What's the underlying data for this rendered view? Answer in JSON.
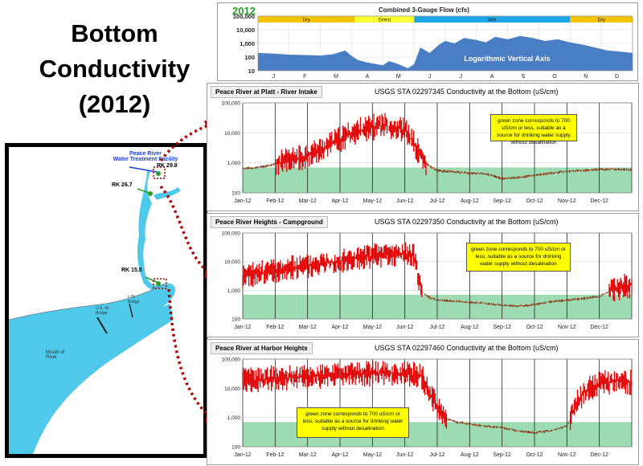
{
  "title": {
    "line1": "Bottom",
    "line2": "Conductivity",
    "line3": "(2012)"
  },
  "map": {
    "facility_label": "Peace River\nWater Treatment Facility",
    "rk_labels": [
      "RK 29.8",
      "RK 26.7",
      "RK 15.5"
    ],
    "mouth_label": "Mouth of\nRiver",
    "bridge_labels": [
      "U.S. 41\nBridge",
      "I-75\nBridge"
    ],
    "colors": {
      "water": "#4ec9e9",
      "land": "#ffffff",
      "arrow": "#b00000",
      "marker": "#2a9d2a"
    }
  },
  "chart_data": [
    {
      "type": "area",
      "id": "flow",
      "year_label": "2012",
      "title": "Combined 3-Gauge Flow (cfs)",
      "annotation": "Logarithmic Vertical Axis",
      "y_scale": "log",
      "ylim": [
        10,
        100000
      ],
      "yticks": [
        "100,000",
        "10,000",
        "1,000",
        "100",
        "10"
      ],
      "xticks": [
        "J",
        "F",
        "M",
        "A",
        "M",
        "J",
        "J",
        "A",
        "S",
        "O",
        "N",
        "D"
      ],
      "seasons": [
        {
          "label": "Dry",
          "start_month": 0,
          "end_month": 3.1,
          "color": "#f5c400"
        },
        {
          "label": "Driest",
          "start_month": 3.1,
          "end_month": 5.0,
          "color": "#ffff33"
        },
        {
          "label": "Wet",
          "start_month": 5.0,
          "end_month": 10.0,
          "color": "#1ea6e8"
        },
        {
          "label": "Dry",
          "start_month": 10.0,
          "end_month": 12.0,
          "color": "#f5c400"
        }
      ],
      "fill_color": "#4a7ec4",
      "series": [
        {
          "x": [
            0,
            0.5,
            1,
            1.5,
            2,
            2.4,
            2.8,
            3.0,
            3.2,
            3.5,
            3.8,
            4.0,
            4.2,
            4.5,
            4.8,
            5.0,
            5.2,
            5.5,
            5.8,
            6.0,
            6.3,
            6.6,
            7.0,
            7.3,
            7.6,
            8.0,
            8.4,
            8.8,
            9.2,
            9.6,
            10.0,
            10.4,
            10.8,
            11.2,
            11.6,
            12.0
          ],
          "values": [
            200,
            180,
            150,
            140,
            130,
            160,
            300,
            120,
            60,
            40,
            30,
            25,
            50,
            30,
            15,
            30,
            500,
            200,
            800,
            1500,
            1000,
            2500,
            1800,
            1200,
            3000,
            2000,
            3500,
            2500,
            1500,
            2000,
            1200,
            800,
            500,
            300,
            250,
            200
          ]
        }
      ]
    },
    {
      "type": "scatter",
      "id": "platt",
      "panel_title": "Peace River at Platt - River Intake",
      "title": "USGS STA 02297345 Conductivity at the Bottom (uS/cm)",
      "note": "green zone corresponds to 700 uS/cm or less, suitable as a source for drinking water supply without desalination",
      "y_scale": "log",
      "ylim": [
        100,
        100000
      ],
      "yticks": [
        "100,000",
        "10,000",
        "1,000",
        "100"
      ],
      "xticks": [
        "Jan-12",
        "Feb-12",
        "Mar-12",
        "Apr-12",
        "May-12",
        "Jun-12",
        "Jul-12",
        "Aug-12",
        "Sep-12",
        "Oct-12",
        "Nov-12",
        "Dec-12"
      ],
      "green_zone_max": 700,
      "colors": {
        "points": "#e00000",
        "points_low": "#8b2d0e",
        "green": "#9ddbb3"
      },
      "series": [
        {
          "x": [
            0,
            0.5,
            1,
            1.5,
            2,
            2.5,
            3,
            3.3,
            3.6,
            4,
            4.3,
            4.6,
            5,
            5.3,
            5.6,
            6,
            6.5,
            7,
            7.5,
            8,
            8.5,
            9,
            9.5,
            10,
            10.5,
            11,
            11.5,
            12
          ],
          "values": [
            650,
            700,
            900,
            1200,
            1800,
            3000,
            6000,
            9000,
            12000,
            15000,
            18000,
            16000,
            12000,
            4000,
            1000,
            550,
            500,
            450,
            430,
            300,
            320,
            380,
            450,
            520,
            560,
            600,
            620,
            580
          ]
        }
      ]
    },
    {
      "type": "scatter",
      "id": "heights",
      "panel_title": "Peace River Heights - Campground",
      "title": "USGS STA 02297350 Conductivity at the Bottom (uS/cm)",
      "note": "green zone corresponds to 700 uS/cm or less, suitable as a source for drinking water supply without desalination",
      "y_scale": "log",
      "ylim": [
        100,
        100000
      ],
      "yticks": [
        "100,000",
        "10,000",
        "1,000",
        "100"
      ],
      "xticks": [
        "Jan-12",
        "Feb-12",
        "Mar-12",
        "Apr-12",
        "May-12",
        "Jun-12",
        "Jul-12",
        "Aug-12",
        "Sep-12",
        "Oct-12",
        "Nov-12",
        "Dec-12"
      ],
      "green_zone_max": 700,
      "colors": {
        "points": "#e00000",
        "points_low": "#8b2d0e",
        "green": "#9ddbb3"
      },
      "series": [
        {
          "x": [
            0,
            0.5,
            1,
            1.5,
            2,
            2.5,
            3,
            3.5,
            4,
            4.5,
            5,
            5.3,
            5.5,
            5.7,
            6,
            6.5,
            7,
            7.5,
            8,
            8.5,
            9,
            9.5,
            10,
            10.5,
            11,
            11.5,
            12
          ],
          "values": [
            3000,
            4000,
            5000,
            6000,
            7000,
            9000,
            10000,
            13000,
            16000,
            18000,
            18000,
            15000,
            1000,
            600,
            450,
            420,
            380,
            350,
            300,
            280,
            320,
            400,
            450,
            520,
            600,
            1200,
            1500
          ]
        }
      ]
    },
    {
      "type": "scatter",
      "id": "harbor",
      "panel_title": "Peace River at Harbor Heights",
      "title": "USGS STA 02297460 Conductivity at the Bottom (uS/cm)",
      "note": "green zone corresponds to 700 uS/cm or less, suitable as a source for drinking water supply without desalination",
      "y_scale": "log",
      "ylim": [
        100,
        100000
      ],
      "yticks": [
        "100,000",
        "10,000",
        "1,000",
        "100"
      ],
      "xticks": [
        "Jan-12",
        "Feb-12",
        "Mar-12",
        "Apr-12",
        "May-12",
        "Jun-12",
        "Jul-12",
        "Aug-12",
        "Sep-12",
        "Oct-12",
        "Nov-12",
        "Dec-12"
      ],
      "green_zone_max": 700,
      "colors": {
        "points": "#e00000",
        "points_low": "#8b2d0e",
        "green": "#9ddbb3"
      },
      "series": [
        {
          "x": [
            0,
            0.5,
            1,
            1.5,
            2,
            2.5,
            3,
            3.5,
            4,
            4.5,
            5,
            5.5,
            5.8,
            6,
            6.3,
            6.6,
            7,
            7.5,
            8,
            8.5,
            9,
            9.5,
            10,
            10.3,
            10.6,
            11,
            11.5,
            12
          ],
          "values": [
            18000,
            20000,
            22000,
            24000,
            26000,
            27000,
            28000,
            30000,
            32000,
            33000,
            32000,
            28000,
            6000,
            2000,
            900,
            700,
            600,
            500,
            450,
            350,
            300,
            350,
            500,
            3000,
            9000,
            15000,
            18000,
            16000
          ]
        }
      ]
    }
  ]
}
